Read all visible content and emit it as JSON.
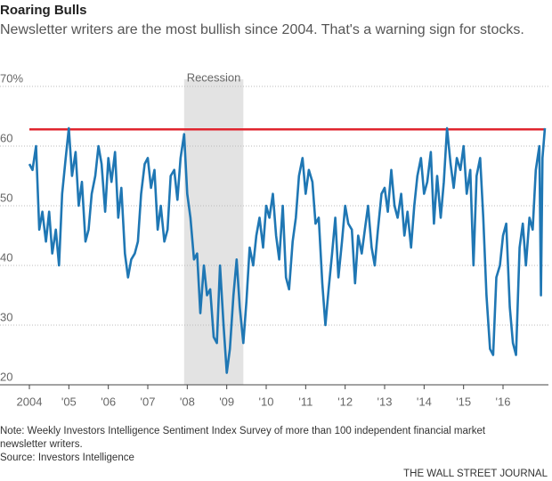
{
  "chart_data": {
    "type": "line",
    "title": "Roaring Bulls",
    "subtitle": "Newsletter writers are the most bullish since 2004. That's a warning sign for stocks.",
    "note": "Note: Weekly Investors Intelligence Sentiment Index Survey of more than 100 independent financial market newsletter writers.",
    "source": "Source: Investors Intelligence",
    "credit": "THE WALL STREET JOURNAL",
    "shaded_regions": [
      {
        "label": "Recession",
        "x": [
          2007.92,
          2009.42
        ]
      }
    ],
    "reference_line": {
      "value": 62.8,
      "color": "#e0262f"
    },
    "xlim": [
      2004,
      2017.15
    ],
    "xticks": [
      2004,
      {
        "value": 2005,
        "label": "'05"
      },
      {
        "value": 2006,
        "label": "'06"
      },
      {
        "value": 2007,
        "label": "'07"
      },
      {
        "value": 2008,
        "label": "'08"
      },
      {
        "value": 2009,
        "label": "'09"
      },
      {
        "value": 2010,
        "label": "'10"
      },
      {
        "value": 2011,
        "label": "'11"
      },
      {
        "value": 2012,
        "label": "'12"
      },
      {
        "value": 2013,
        "label": "'13"
      },
      {
        "value": 2014,
        "label": "'14"
      },
      {
        "value": 2015,
        "label": "'15"
      },
      {
        "value": 2016,
        "label": "'16"
      }
    ],
    "ylim": [
      20,
      70
    ],
    "yticks": [
      20,
      30,
      40,
      50,
      60,
      {
        "value": 70,
        "label": "70%"
      }
    ],
    "grid": true,
    "x": [
      2004,
      2004.08,
      2004.17,
      2004.25,
      2004.33,
      2004.42,
      2004.5,
      2004.58,
      2004.67,
      2004.75,
      2004.83,
      2004.92,
      2005,
      2005.08,
      2005.17,
      2005.25,
      2005.33,
      2005.42,
      2005.5,
      2005.58,
      2005.67,
      2005.75,
      2005.83,
      2005.92,
      2006,
      2006.08,
      2006.17,
      2006.25,
      2006.33,
      2006.42,
      2006.5,
      2006.58,
      2006.67,
      2006.75,
      2006.83,
      2006.92,
      2007,
      2007.08,
      2007.17,
      2007.25,
      2007.33,
      2007.42,
      2007.5,
      2007.58,
      2007.67,
      2007.75,
      2007.83,
      2007.92,
      2008,
      2008.08,
      2008.17,
      2008.25,
      2008.33,
      2008.42,
      2008.5,
      2008.58,
      2008.67,
      2008.75,
      2008.83,
      2008.92,
      2009,
      2009.08,
      2009.17,
      2009.25,
      2009.33,
      2009.42,
      2009.5,
      2009.58,
      2009.67,
      2009.75,
      2009.83,
      2009.92,
      2010,
      2010.08,
      2010.17,
      2010.25,
      2010.33,
      2010.42,
      2010.5,
      2010.58,
      2010.67,
      2010.75,
      2010.83,
      2010.92,
      2011,
      2011.08,
      2011.17,
      2011.25,
      2011.33,
      2011.42,
      2011.5,
      2011.58,
      2011.67,
      2011.75,
      2011.83,
      2011.92,
      2012,
      2012.08,
      2012.17,
      2012.25,
      2012.33,
      2012.42,
      2012.5,
      2012.58,
      2012.67,
      2012.75,
      2012.83,
      2012.92,
      2013,
      2013.08,
      2013.17,
      2013.25,
      2013.33,
      2013.42,
      2013.5,
      2013.58,
      2013.67,
      2013.75,
      2013.83,
      2013.92,
      2014,
      2014.08,
      2014.17,
      2014.25,
      2014.33,
      2014.42,
      2014.5,
      2014.58,
      2014.67,
      2014.75,
      2014.83,
      2014.92,
      2015,
      2015.08,
      2015.17,
      2015.25,
      2015.33,
      2015.42,
      2015.5,
      2015.58,
      2015.67,
      2015.75,
      2015.83,
      2015.92,
      2016,
      2016.08,
      2016.17,
      2016.25,
      2016.33,
      2016.42,
      2016.5,
      2016.58,
      2016.67,
      2016.75,
      2016.83,
      2016.92,
      2016.96,
      2017,
      2017.06
    ],
    "series": [
      {
        "color": "#1f77b4",
        "values": [
          57,
          56,
          60,
          46,
          49,
          44,
          49,
          42,
          46,
          40,
          52,
          58,
          63,
          55,
          59,
          50,
          54,
          44,
          46,
          52,
          55,
          60,
          57,
          49,
          58,
          54,
          59,
          48,
          53,
          42,
          38,
          41,
          42,
          44,
          52,
          57,
          58,
          53,
          56,
          46,
          50,
          44,
          46,
          55,
          56,
          51,
          58,
          62,
          52,
          48,
          41,
          42,
          32,
          40,
          35,
          36,
          28,
          27,
          40,
          30,
          22,
          26,
          35,
          41,
          33,
          27,
          34,
          43,
          40,
          45,
          48,
          43,
          50,
          48,
          52,
          45,
          41,
          50,
          38,
          36,
          44,
          48,
          55,
          58,
          52,
          56,
          54,
          47,
          48,
          37,
          30,
          36,
          42,
          48,
          38,
          44,
          50,
          47,
          46,
          37,
          45,
          42,
          46,
          50,
          43,
          40,
          46,
          52,
          53,
          49,
          56,
          50,
          48,
          52,
          45,
          49,
          43,
          50,
          55,
          58,
          52,
          54,
          59,
          47,
          55,
          48,
          54,
          63,
          57,
          53,
          58,
          56,
          60,
          52,
          56,
          40,
          55,
          58,
          48,
          35,
          26,
          25,
          38,
          40,
          45,
          47,
          33,
          27,
          25,
          43,
          47,
          40,
          48,
          46,
          56,
          60,
          35,
          58,
          63
        ]
      }
    ]
  }
}
